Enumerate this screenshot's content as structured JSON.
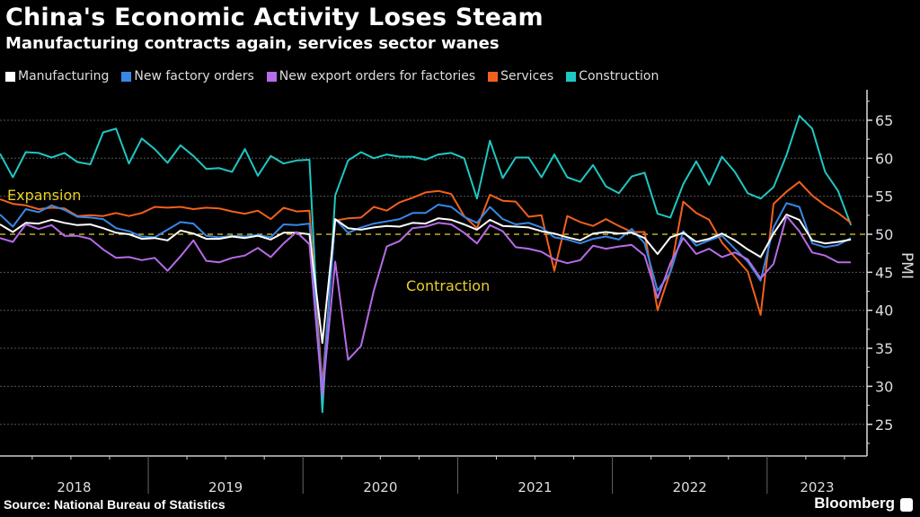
{
  "header": {
    "title": "China's Economic Activity Loses Steam",
    "subtitle": "Manufacturing contracts again, services sector wanes"
  },
  "footer": {
    "source": "Source: National Bureau of Statistics",
    "brand": "Bloomberg"
  },
  "chart_data": {
    "type": "line",
    "title": "China's Economic Activity Loses Steam",
    "subtitle": "Manufacturing contracts again, services sector wanes",
    "xlabel": "",
    "ylabel": "PMI",
    "ylim": [
      21,
      68
    ],
    "yticks": [
      25,
      30,
      35,
      40,
      45,
      50,
      55,
      60,
      65
    ],
    "x_start": "2018-01",
    "x_end": "2023-07",
    "x_frequency": "monthly",
    "x_year_labels": [
      "2018",
      "2019",
      "2020",
      "2021",
      "2022",
      "2023"
    ],
    "grid": true,
    "legend_position": "top-left",
    "reference_line": {
      "value": 50,
      "style": "dashed",
      "color": "#e8cf2a"
    },
    "annotations": [
      {
        "text": "Expansion",
        "x": "2018-01",
        "y": 55.2,
        "color": "#e8cf2a"
      },
      {
        "text": "Contraction",
        "x": "2020-10",
        "y": 43.2,
        "color": "#e8cf2a"
      }
    ],
    "series": [
      {
        "name": "Construction",
        "color": "#1fc7c3",
        "values": [
          60.6,
          57.5,
          60.8,
          60.7,
          60.1,
          60.7,
          59.5,
          59.2,
          63.4,
          63.9,
          59.3,
          62.6,
          61.2,
          59.4,
          61.7,
          60.3,
          58.6,
          58.7,
          58.2,
          61.2,
          57.7,
          60.3,
          59.3,
          59.7,
          59.8,
          26.6,
          55.1,
          59.7,
          60.8,
          60.0,
          60.5,
          60.2,
          60.2,
          59.8,
          60.5,
          60.7,
          60.0,
          54.7,
          62.3,
          57.4,
          60.1,
          60.1,
          57.5,
          60.5,
          57.5,
          56.9,
          59.1,
          56.3,
          55.4,
          57.6,
          58.1,
          52.7,
          52.2,
          56.6,
          59.6,
          56.5,
          60.2,
          58.2,
          55.4,
          54.7,
          56.2,
          60.4,
          65.6,
          63.9,
          58.2,
          55.7,
          51.2
        ]
      },
      {
        "name": "Services",
        "color": "#f2601d",
        "values": [
          54.6,
          54.0,
          53.8,
          53.3,
          53.5,
          53.4,
          52.4,
          52.5,
          52.4,
          52.8,
          52.4,
          52.8,
          53.6,
          53.5,
          53.6,
          53.3,
          53.5,
          53.4,
          53.0,
          52.7,
          53.1,
          52.0,
          53.5,
          53.0,
          53.1,
          30.1,
          51.8,
          52.1,
          52.2,
          53.6,
          53.1,
          54.2,
          54.8,
          55.5,
          55.7,
          55.3,
          52.4,
          50.8,
          55.2,
          54.4,
          54.3,
          52.3,
          52.5,
          45.2,
          52.4,
          51.6,
          51.1,
          52.0,
          51.1,
          50.3,
          50.3,
          40.0,
          45.1,
          54.3,
          52.8,
          51.9,
          48.9,
          47.0,
          45.1,
          39.4,
          54.0,
          55.6,
          56.9,
          55.1,
          53.8,
          52.8,
          51.5
        ]
      },
      {
        "name": "New factory orders",
        "color": "#3987e5",
        "values": [
          52.6,
          51.0,
          53.3,
          52.9,
          53.8,
          53.2,
          52.3,
          52.2,
          52.0,
          50.8,
          50.4,
          49.7,
          49.6,
          50.6,
          51.6,
          51.4,
          49.8,
          49.6,
          49.8,
          49.7,
          49.9,
          49.6,
          51.3,
          51.2,
          51.4,
          29.3,
          52.0,
          50.2,
          50.9,
          51.4,
          51.7,
          52.0,
          52.8,
          52.8,
          53.9,
          53.6,
          52.3,
          51.5,
          53.6,
          52.0,
          51.3,
          51.5,
          50.9,
          49.6,
          49.3,
          48.8,
          49.4,
          49.7,
          49.3,
          50.7,
          48.8,
          42.6,
          45.0,
          50.4,
          48.5,
          49.2,
          49.8,
          48.1,
          46.4,
          43.9,
          50.9,
          54.1,
          53.6,
          48.8,
          48.3,
          48.6,
          49.5
        ]
      },
      {
        "name": "Manufacturing",
        "color": "#ffffff",
        "values": [
          51.3,
          50.3,
          51.5,
          51.4,
          51.9,
          51.5,
          51.2,
          51.3,
          50.8,
          50.2,
          50.0,
          49.4,
          49.5,
          49.2,
          50.5,
          50.1,
          49.4,
          49.4,
          49.7,
          49.5,
          49.8,
          49.3,
          50.2,
          50.2,
          50.0,
          35.7,
          52.0,
          50.8,
          50.6,
          50.9,
          51.1,
          51.0,
          51.5,
          51.4,
          52.1,
          51.9,
          51.3,
          50.6,
          51.9,
          51.1,
          51.0,
          50.9,
          50.4,
          50.1,
          49.6,
          49.2,
          50.1,
          50.3,
          50.1,
          50.2,
          49.5,
          47.4,
          49.6,
          50.2,
          49.0,
          49.4,
          50.1,
          49.2,
          48.0,
          47.0,
          50.1,
          52.6,
          51.9,
          49.2,
          48.8,
          49.0,
          49.3
        ]
      },
      {
        "name": "New export orders for factories",
        "color": "#b66be8",
        "values": [
          49.5,
          49.0,
          51.3,
          50.7,
          51.2,
          49.8,
          49.8,
          49.4,
          48.0,
          46.9,
          47.0,
          46.6,
          46.9,
          45.2,
          47.1,
          49.2,
          46.5,
          46.3,
          46.9,
          47.2,
          48.2,
          47.0,
          48.8,
          50.3,
          48.7,
          28.7,
          46.4,
          33.5,
          35.3,
          42.6,
          48.4,
          49.1,
          50.8,
          51.0,
          51.5,
          51.3,
          50.2,
          48.8,
          51.2,
          50.4,
          48.3,
          48.1,
          47.7,
          46.7,
          46.2,
          46.6,
          48.5,
          48.1,
          48.4,
          48.6,
          47.2,
          41.6,
          46.2,
          49.5,
          47.4,
          48.1,
          47.0,
          47.6,
          46.7,
          44.2,
          46.1,
          52.4,
          50.4,
          47.6,
          47.2,
          46.3,
          46.3
        ]
      }
    ]
  }
}
